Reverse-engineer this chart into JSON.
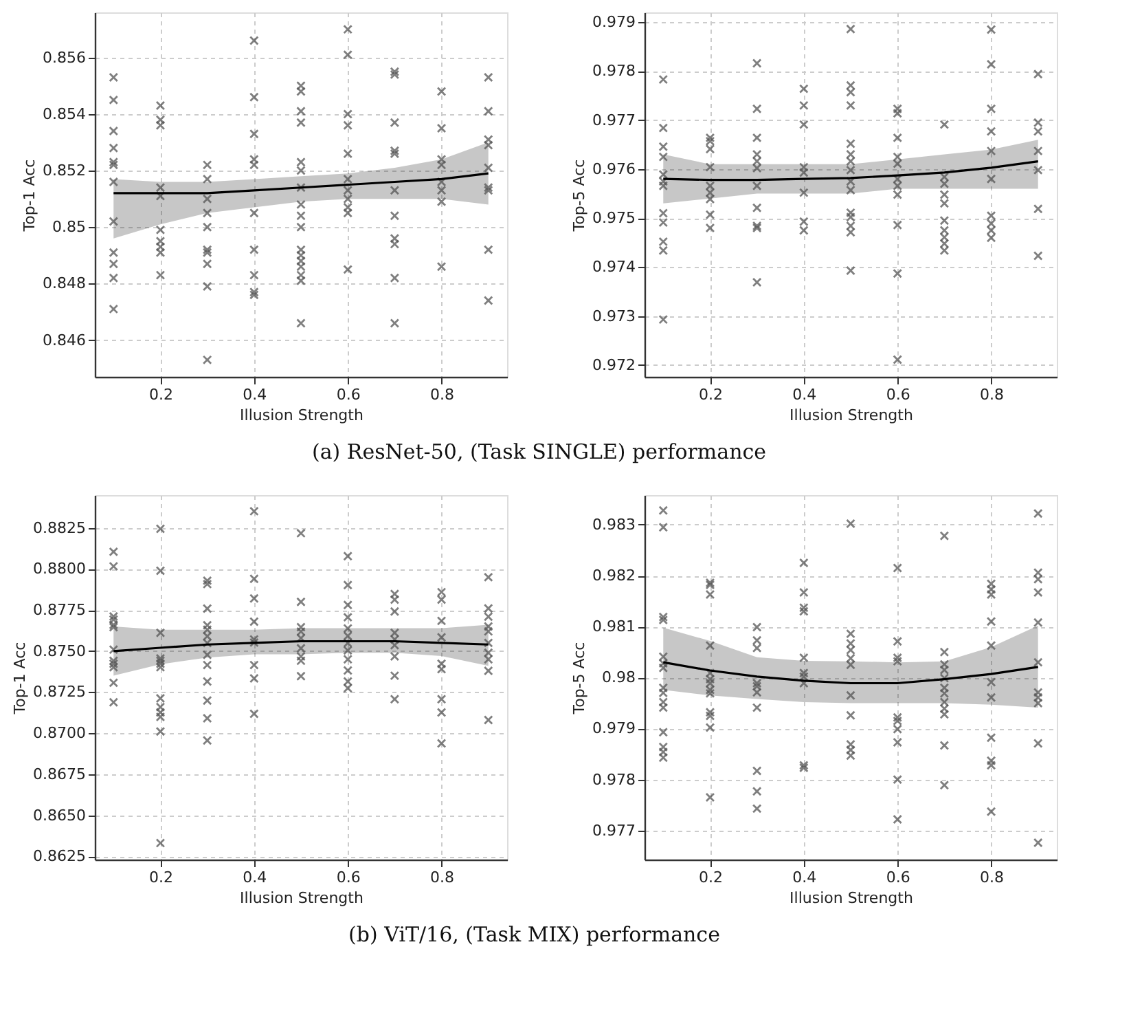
{
  "chart_data": [
    {
      "type": "scatter",
      "xlabel": "Illusion Strength",
      "ylabel": "Top-1 Acc",
      "annotations": [
        "(a) ResNet-50, (Task SINGLE) performance"
      ],
      "xlim": [
        0.06,
        0.94
      ],
      "xticks": [
        0.2,
        0.4,
        0.6,
        0.8
      ],
      "ylim": [
        0.8447,
        0.8576
      ],
      "yticks": [
        0.846,
        0.848,
        0.85,
        0.852,
        0.854,
        0.856
      ],
      "grid": true,
      "marker": "cross",
      "series": [
        {
          "type": "scatter",
          "color": "#555555",
          "x": [
            0.1,
            0.1,
            0.1,
            0.1,
            0.1,
            0.1,
            0.1,
            0.1,
            0.1,
            0.1,
            0.1,
            0.1,
            0.2,
            0.2,
            0.2,
            0.2,
            0.2,
            0.2,
            0.2,
            0.2,
            0.2,
            0.2,
            0.3,
            0.3,
            0.3,
            0.3,
            0.3,
            0.3,
            0.3,
            0.3,
            0.3,
            0.3,
            0.4,
            0.4,
            0.4,
            0.4,
            0.4,
            0.4,
            0.4,
            0.4,
            0.4,
            0.4,
            0.5,
            0.5,
            0.5,
            0.5,
            0.5,
            0.5,
            0.5,
            0.5,
            0.5,
            0.5,
            0.5,
            0.5,
            0.5,
            0.5,
            0.5,
            0.5,
            0.5,
            0.6,
            0.6,
            0.6,
            0.6,
            0.6,
            0.6,
            0.6,
            0.6,
            0.6,
            0.6,
            0.6,
            0.7,
            0.7,
            0.7,
            0.7,
            0.7,
            0.7,
            0.7,
            0.7,
            0.7,
            0.7,
            0.7,
            0.8,
            0.8,
            0.8,
            0.8,
            0.8,
            0.8,
            0.8,
            0.8,
            0.9,
            0.9,
            0.9,
            0.9,
            0.9,
            0.9,
            0.9,
            0.9,
            0.9
          ],
          "values": [
            0.8553,
            0.8545,
            0.8534,
            0.8528,
            0.8523,
            0.8522,
            0.8516,
            0.8502,
            0.8491,
            0.8487,
            0.8482,
            0.8471,
            0.8543,
            0.8538,
            0.8536,
            0.8514,
            0.8511,
            0.8499,
            0.8495,
            0.8493,
            0.8491,
            0.8483,
            0.8522,
            0.8517,
            0.851,
            0.8505,
            0.85,
            0.8492,
            0.8491,
            0.8487,
            0.8479,
            0.8453,
            0.8566,
            0.8546,
            0.8533,
            0.8524,
            0.8522,
            0.8505,
            0.8492,
            0.8483,
            0.8477,
            0.8476,
            0.855,
            0.8548,
            0.8541,
            0.8537,
            0.8523,
            0.852,
            0.8514,
            0.8508,
            0.8504,
            0.85,
            0.8492,
            0.849,
            0.8488,
            0.8486,
            0.8483,
            0.8481,
            0.8466,
            0.857,
            0.8561,
            0.854,
            0.8536,
            0.8526,
            0.8517,
            0.8513,
            0.851,
            0.8507,
            0.8505,
            0.8485,
            0.8555,
            0.8554,
            0.8537,
            0.8527,
            0.8526,
            0.8513,
            0.8504,
            0.8496,
            0.8494,
            0.8482,
            0.8466,
            0.8548,
            0.8535,
            0.8524,
            0.8522,
            0.8516,
            0.8513,
            0.8509,
            0.8486,
            0.8553,
            0.8541,
            0.8531,
            0.8529,
            0.8521,
            0.8514,
            0.8513,
            0.8492,
            0.8474
          ]
        },
        {
          "type": "line",
          "color": "#000000",
          "x": [
            0.1,
            0.2,
            0.3,
            0.4,
            0.5,
            0.6,
            0.7,
            0.8,
            0.9
          ],
          "marker": "none",
          "values": [
            0.8512,
            0.8512,
            0.8512,
            0.8513,
            0.8514,
            0.8515,
            0.8516,
            0.8517,
            0.8519
          ],
          "lower": [
            0.8496,
            0.8501,
            0.8505,
            0.8507,
            0.8509,
            0.851,
            0.851,
            0.851,
            0.8508
          ],
          "upper": [
            0.8517,
            0.8516,
            0.8516,
            0.8517,
            0.8518,
            0.8519,
            0.8521,
            0.8524,
            0.853
          ]
        }
      ]
    },
    {
      "type": "scatter",
      "xlabel": "Illusion Strength",
      "ylabel": "Top-5 Acc",
      "xlim": [
        0.06,
        0.94
      ],
      "xticks": [
        0.2,
        0.4,
        0.6,
        0.8
      ],
      "ylim": [
        0.97176,
        0.9792
      ],
      "yticks": [
        0.972,
        0.973,
        0.974,
        0.975,
        0.976,
        0.977,
        0.978,
        0.979
      ],
      "grid": true,
      "marker": "cross",
      "series": [
        {
          "type": "scatter",
          "color": "#555555",
          "x": [
            0.1,
            0.1,
            0.1,
            0.1,
            0.1,
            0.1,
            0.1,
            0.1,
            0.1,
            0.1,
            0.1,
            0.1,
            0.2,
            0.2,
            0.2,
            0.2,
            0.2,
            0.2,
            0.2,
            0.2,
            0.2,
            0.3,
            0.3,
            0.3,
            0.3,
            0.3,
            0.3,
            0.3,
            0.3,
            0.3,
            0.3,
            0.3,
            0.4,
            0.4,
            0.4,
            0.4,
            0.4,
            0.4,
            0.4,
            0.4,
            0.5,
            0.5,
            0.5,
            0.5,
            0.5,
            0.5,
            0.5,
            0.5,
            0.5,
            0.5,
            0.5,
            0.5,
            0.5,
            0.5,
            0.5,
            0.6,
            0.6,
            0.6,
            0.6,
            0.6,
            0.6,
            0.6,
            0.6,
            0.6,
            0.6,
            0.6,
            0.7,
            0.7,
            0.7,
            0.7,
            0.7,
            0.7,
            0.7,
            0.7,
            0.7,
            0.7,
            0.8,
            0.8,
            0.8,
            0.8,
            0.8,
            0.8,
            0.8,
            0.8,
            0.8,
            0.8,
            0.9,
            0.9,
            0.9,
            0.9,
            0.9,
            0.9,
            0.9
          ],
          "values": [
            0.97783,
            0.97684,
            0.97646,
            0.97625,
            0.97589,
            0.97575,
            0.97566,
            0.9751,
            0.97491,
            0.97452,
            0.97434,
            0.97293,
            0.97664,
            0.97657,
            0.97641,
            0.97604,
            0.97566,
            0.97552,
            0.97539,
            0.97507,
            0.9748,
            0.97816,
            0.97723,
            0.97664,
            0.9763,
            0.97616,
            0.97602,
            0.97566,
            0.97521,
            0.97484,
            0.9748,
            0.97369,
            0.97764,
            0.9773,
            0.97691,
            0.97604,
            0.97593,
            0.97552,
            0.97493,
            0.97475,
            0.97886,
            0.97771,
            0.97757,
            0.9773,
            0.97652,
            0.9763,
            0.97616,
            0.97598,
            0.97575,
            0.97557,
            0.97511,
            0.97502,
            0.97484,
            0.97471,
            0.97393,
            0.97723,
            0.97714,
            0.97664,
            0.97625,
            0.97611,
            0.9758,
            0.97566,
            0.97548,
            0.97486,
            0.97387,
            0.97211,
            0.97691,
            0.97584,
            0.9757,
            0.97548,
            0.9753,
            0.97495,
            0.97475,
            0.97461,
            0.97448,
            0.97434,
            0.97885,
            0.97814,
            0.97723,
            0.97677,
            0.97637,
            0.9758,
            0.97505,
            0.97489,
            0.97475,
            0.9746,
            0.97794,
            0.97695,
            0.97677,
            0.97637,
            0.97598,
            0.97519,
            0.97423
          ]
        },
        {
          "type": "line",
          "color": "#000000",
          "x": [
            0.1,
            0.2,
            0.3,
            0.4,
            0.5,
            0.6,
            0.7,
            0.8,
            0.9
          ],
          "marker": "none",
          "values": [
            0.9758,
            0.97578,
            0.97578,
            0.9758,
            0.97582,
            0.97587,
            0.97593,
            0.97603,
            0.97616
          ],
          "lower": [
            0.9753,
            0.9754,
            0.9755,
            0.9755,
            0.9755,
            0.9756,
            0.9756,
            0.9756,
            0.9756
          ],
          "upper": [
            0.9763,
            0.9761,
            0.9761,
            0.9761,
            0.9761,
            0.9762,
            0.9763,
            0.9764,
            0.9766
          ]
        }
      ]
    },
    {
      "type": "scatter",
      "xlabel": "Illusion Strength",
      "ylabel": "Top-1 Acc",
      "annotations": [
        "(b) ViT/16, (Task MIX) performance"
      ],
      "xlim": [
        0.06,
        0.94
      ],
      "xticks": [
        0.2,
        0.4,
        0.6,
        0.8
      ],
      "ylim": [
        0.8623,
        0.8845
      ],
      "yticks": [
        0.8625,
        {
          "value": 0.865,
          "label": "0.8650"
        },
        0.8675,
        {
          "value": 0.87,
          "label": "0.8700"
        },
        0.8725,
        {
          "value": 0.875,
          "label": "0.8750"
        },
        0.8775,
        {
          "value": 0.88,
          "label": "0.8800"
        },
        0.8825
      ],
      "grid": true,
      "marker": "cross",
      "series": [
        {
          "type": "scatter",
          "color": "#555555",
          "x": [
            0.1,
            0.1,
            0.1,
            0.1,
            0.1,
            0.1,
            0.1,
            0.1,
            0.1,
            0.1,
            0.1,
            0.1,
            0.2,
            0.2,
            0.2,
            0.2,
            0.2,
            0.2,
            0.2,
            0.2,
            0.2,
            0.2,
            0.2,
            0.2,
            0.2,
            0.3,
            0.3,
            0.3,
            0.3,
            0.3,
            0.3,
            0.3,
            0.3,
            0.3,
            0.3,
            0.3,
            0.3,
            0.3,
            0.4,
            0.4,
            0.4,
            0.4,
            0.4,
            0.4,
            0.4,
            0.4,
            0.4,
            0.5,
            0.5,
            0.5,
            0.5,
            0.5,
            0.5,
            0.5,
            0.5,
            0.5,
            0.6,
            0.6,
            0.6,
            0.6,
            0.6,
            0.6,
            0.6,
            0.6,
            0.6,
            0.6,
            0.6,
            0.6,
            0.7,
            0.7,
            0.7,
            0.7,
            0.7,
            0.7,
            0.7,
            0.7,
            0.7,
            0.8,
            0.8,
            0.8,
            0.8,
            0.8,
            0.8,
            0.8,
            0.8,
            0.8,
            0.9,
            0.9,
            0.9,
            0.9,
            0.9,
            0.9,
            0.9,
            0.9,
            0.9,
            0.9
          ],
          "values": [
            0.88105,
            0.88016,
            0.87711,
            0.87692,
            0.8766,
            0.87646,
            0.87509,
            0.87441,
            0.87423,
            0.87402,
            0.87307,
            0.87188,
            0.88245,
            0.87989,
            0.87611,
            0.87455,
            0.87441,
            0.87423,
            0.87402,
            0.87212,
            0.87159,
            0.87126,
            0.87099,
            0.8701,
            0.86331,
            0.87929,
            0.87908,
            0.87759,
            0.87657,
            0.8763,
            0.8759,
            0.87549,
            0.87477,
            0.87415,
            0.87315,
            0.87199,
            0.87091,
            0.86956,
            0.88352,
            0.8794,
            0.87821,
            0.87679,
            0.87571,
            0.87552,
            0.87415,
            0.87334,
            0.87118,
            0.88218,
            0.878,
            0.87646,
            0.87619,
            0.87579,
            0.87517,
            0.87468,
            0.87441,
            0.87347,
            0.88078,
            0.87902,
            0.87781,
            0.87706,
            0.87638,
            0.87592,
            0.87549,
            0.87504,
            0.8745,
            0.87382,
            0.87315,
            0.87274,
            0.87848,
            0.87813,
            0.87741,
            0.87611,
            0.87571,
            0.87536,
            0.87468,
            0.8735,
            0.87207,
            0.87859,
            0.87813,
            0.87684,
            0.87584,
            0.87423,
            0.8739,
            0.87207,
            0.87126,
            0.86938,
            0.8795,
            0.8776,
            0.8771,
            0.8765,
            0.8762,
            0.8755,
            0.8749,
            0.8745,
            0.8738,
            0.8708
          ]
        },
        {
          "type": "line",
          "color": "#000000",
          "x": [
            0.1,
            0.2,
            0.3,
            0.4,
            0.5,
            0.6,
            0.7,
            0.8,
            0.9
          ],
          "marker": "none",
          "values": [
            0.875,
            0.8752,
            0.8754,
            0.8755,
            0.8756,
            0.8756,
            0.8756,
            0.8755,
            0.8754
          ],
          "lower": [
            0.8735,
            0.8742,
            0.8746,
            0.8748,
            0.8748,
            0.8749,
            0.8749,
            0.8747,
            0.8741
          ],
          "upper": [
            0.8765,
            0.8763,
            0.8763,
            0.8763,
            0.8764,
            0.8764,
            0.8764,
            0.8764,
            0.8766
          ]
        }
      ]
    },
    {
      "type": "scatter",
      "xlabel": "Illusion Strength",
      "ylabel": "Top-5 Acc",
      "xlim": [
        0.06,
        0.94
      ],
      "xticks": [
        0.2,
        0.4,
        0.6,
        0.8
      ],
      "ylim": [
        0.97643,
        0.98358
      ],
      "yticks": [
        0.977,
        0.978,
        0.979,
        0.98,
        0.981,
        0.982,
        0.983
      ],
      "grid": true,
      "marker": "cross",
      "series": [
        {
          "type": "scatter",
          "color": "#555555",
          "x": [
            0.1,
            0.1,
            0.1,
            0.1,
            0.1,
            0.1,
            0.1,
            0.1,
            0.1,
            0.1,
            0.1,
            0.1,
            0.1,
            0.1,
            0.1,
            0.2,
            0.2,
            0.2,
            0.2,
            0.2,
            0.2,
            0.2,
            0.2,
            0.2,
            0.2,
            0.2,
            0.2,
            0.2,
            0.3,
            0.3,
            0.3,
            0.3,
            0.3,
            0.3,
            0.3,
            0.3,
            0.3,
            0.3,
            0.4,
            0.4,
            0.4,
            0.4,
            0.4,
            0.4,
            0.4,
            0.4,
            0.4,
            0.4,
            0.5,
            0.5,
            0.5,
            0.5,
            0.5,
            0.5,
            0.5,
            0.5,
            0.5,
            0.5,
            0.5,
            0.6,
            0.6,
            0.6,
            0.6,
            0.6,
            0.6,
            0.6,
            0.6,
            0.6,
            0.6,
            0.7,
            0.7,
            0.7,
            0.7,
            0.7,
            0.7,
            0.7,
            0.7,
            0.7,
            0.7,
            0.7,
            0.7,
            0.8,
            0.8,
            0.8,
            0.8,
            0.8,
            0.8,
            0.8,
            0.8,
            0.8,
            0.8,
            0.8,
            0.9,
            0.9,
            0.9,
            0.9,
            0.9,
            0.9,
            0.9,
            0.9,
            0.9,
            0.9,
            0.9
          ],
          "values": [
            0.98328,
            0.98295,
            0.98119,
            0.98113,
            0.98041,
            0.98028,
            0.98019,
            0.9798,
            0.9797,
            0.97952,
            0.97941,
            0.97893,
            0.97864,
            0.97854,
            0.97843,
            0.98186,
            0.98182,
            0.98163,
            0.98063,
            0.98009,
            0.97997,
            0.97989,
            0.97976,
            0.97969,
            0.97932,
            0.97925,
            0.97902,
            0.97765,
            0.98099,
            0.98073,
            0.98058,
            0.97989,
            0.97983,
            0.97971,
            0.97941,
            0.97817,
            0.97777,
            0.97743,
            0.98225,
            0.98167,
            0.98137,
            0.9813,
            0.98039,
            0.98009,
            0.98002,
            0.97989,
            0.97828,
            0.97823,
            0.98302,
            0.98086,
            0.98067,
            0.98054,
            0.98038,
            0.98025,
            0.97965,
            0.97926,
            0.97869,
            0.97858,
            0.97847,
            0.98215,
            0.98071,
            0.98039,
            0.98032,
            0.97922,
            0.97915,
            0.97899,
            0.97873,
            0.978,
            0.97722,
            0.98278,
            0.9805,
            0.98026,
            0.98015,
            0.97999,
            0.9798,
            0.97969,
            0.97952,
            0.97939,
            0.97928,
            0.97867,
            0.97789,
            0.98184,
            0.98173,
            0.98163,
            0.9811,
            0.98063,
            0.97991,
            0.97961,
            0.97882,
            0.97837,
            0.97828,
            0.97737,
            0.98322,
            0.98206,
            0.98193,
            0.98167,
            0.98108,
            0.9803,
            0.97971,
            0.97961,
            0.9795,
            0.97871,
            0.97676
          ]
        },
        {
          "type": "line",
          "color": "#000000",
          "x": [
            0.1,
            0.2,
            0.3,
            0.4,
            0.5,
            0.6,
            0.7,
            0.8,
            0.9
          ],
          "marker": "none",
          "values": [
            0.9803,
            0.98014,
            0.98002,
            0.97994,
            0.97989,
            0.97989,
            0.97997,
            0.98007,
            0.98021
          ],
          "lower": [
            0.97976,
            0.97965,
            0.97958,
            0.97952,
            0.9795,
            0.9795,
            0.9795,
            0.97947,
            0.97941
          ],
          "upper": [
            0.98098,
            0.98072,
            0.9804,
            0.98033,
            0.98032,
            0.9803,
            0.98032,
            0.9806,
            0.98102
          ]
        }
      ]
    }
  ]
}
